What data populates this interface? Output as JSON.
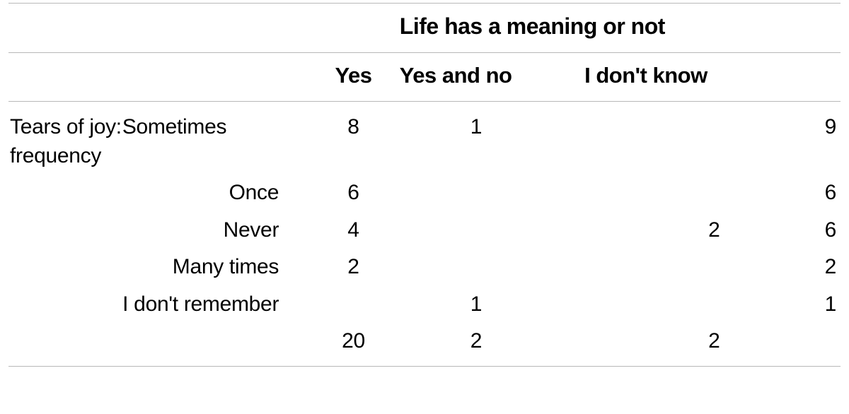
{
  "table": {
    "type": "table",
    "colors": {
      "text": "#000000",
      "background": "#ffffff",
      "rule": "#b8b8b8"
    },
    "fonts": {
      "header_weight": 700,
      "body_weight": 400,
      "header_size_pt": 24,
      "body_size_pt": 22,
      "family": "Helvetica Neue"
    },
    "spanning_header": "Life has a meaning or not",
    "columns": {
      "yes": "Yes",
      "yes_and_no": "Yes and no",
      "i_dont_know": "I don't know"
    },
    "stub_label": "Tears of joy: frequency",
    "rows": [
      {
        "label": "Sometimes",
        "yes": "8",
        "yes_and_no": "1",
        "i_dont_know": "",
        "total": "9"
      },
      {
        "label": "Once",
        "yes": "6",
        "yes_and_no": "",
        "i_dont_know": "",
        "total": "6"
      },
      {
        "label": "Never",
        "yes": "4",
        "yes_and_no": "",
        "i_dont_know": "2",
        "total": "6"
      },
      {
        "label": "Many times",
        "yes": "2",
        "yes_and_no": "",
        "i_dont_know": "",
        "total": "2"
      },
      {
        "label": "I don't remember",
        "yes": "",
        "yes_and_no": "1",
        "i_dont_know": "",
        "total": "1"
      }
    ],
    "totals": {
      "yes": "20",
      "yes_and_no": "2",
      "i_dont_know": "2",
      "total": ""
    }
  }
}
